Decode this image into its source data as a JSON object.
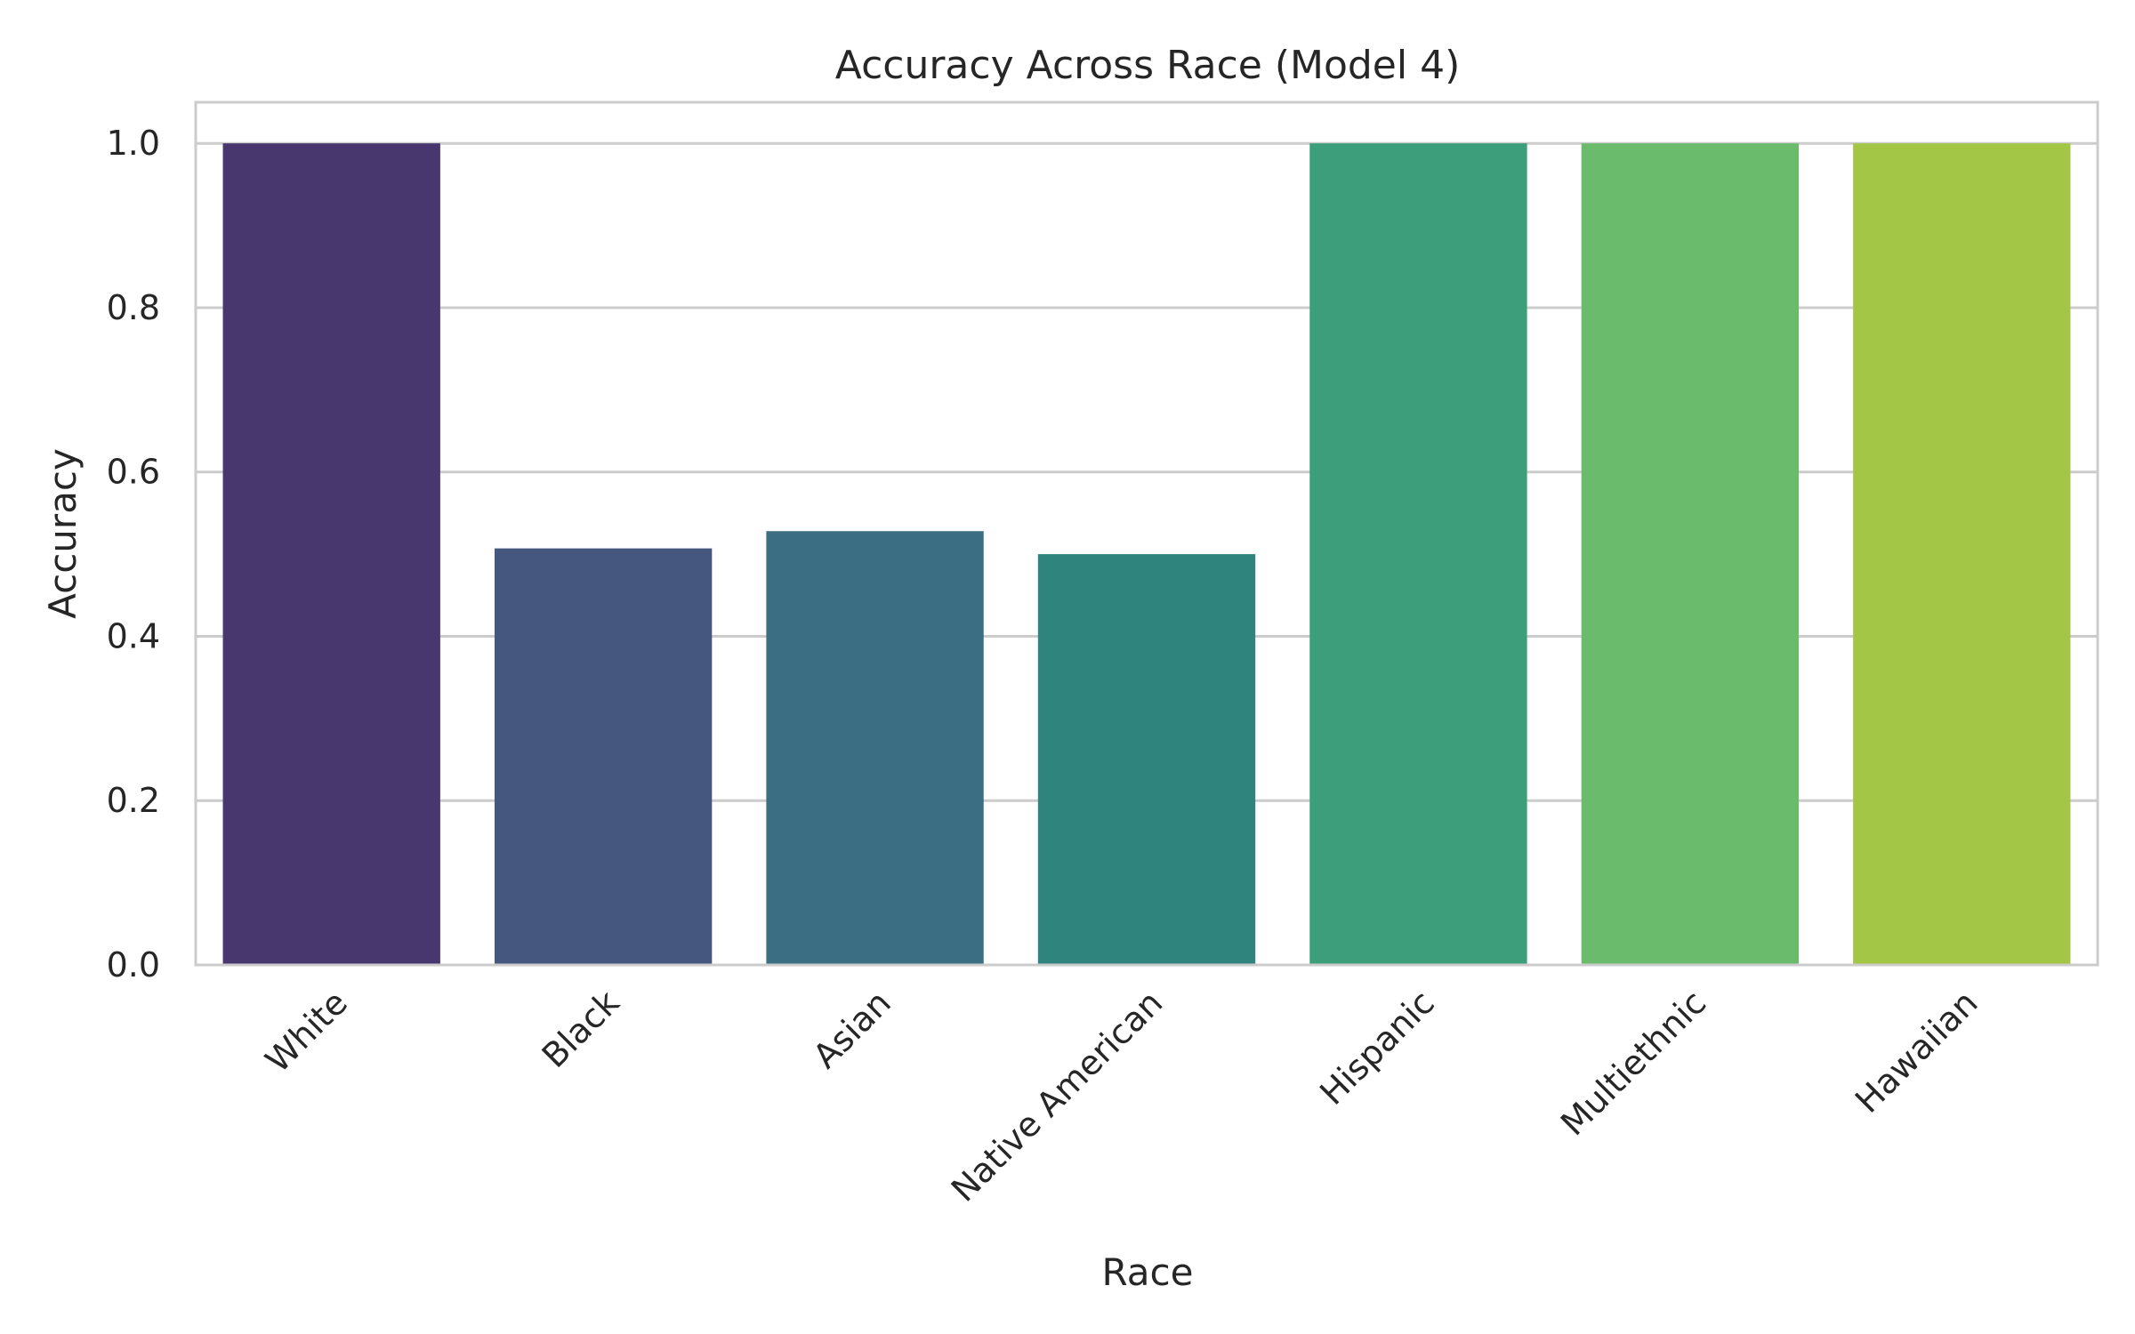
{
  "chart_data": {
    "type": "bar",
    "title": "Accuracy Across Race (Model 4)",
    "xlabel": "Race",
    "ylabel": "Accuracy",
    "categories": [
      "White",
      "Black",
      "Asian",
      "Native American",
      "Hispanic",
      "Multiethnic",
      "Hawaiian"
    ],
    "values": [
      1.0,
      0.507,
      0.528,
      0.5,
      1.0,
      1.0,
      1.0
    ],
    "colors": [
      "#48366f",
      "#46577f",
      "#3b6e82",
      "#2f847e",
      "#3c9e7b",
      "#6bbb6c",
      "#a3c647"
    ],
    "ylim": [
      0,
      1.05
    ],
    "yticks": [
      "0.0",
      "0.2",
      "0.4",
      "0.6",
      "0.8",
      "1.0"
    ],
    "grid": "horizontal",
    "legend": "none"
  }
}
